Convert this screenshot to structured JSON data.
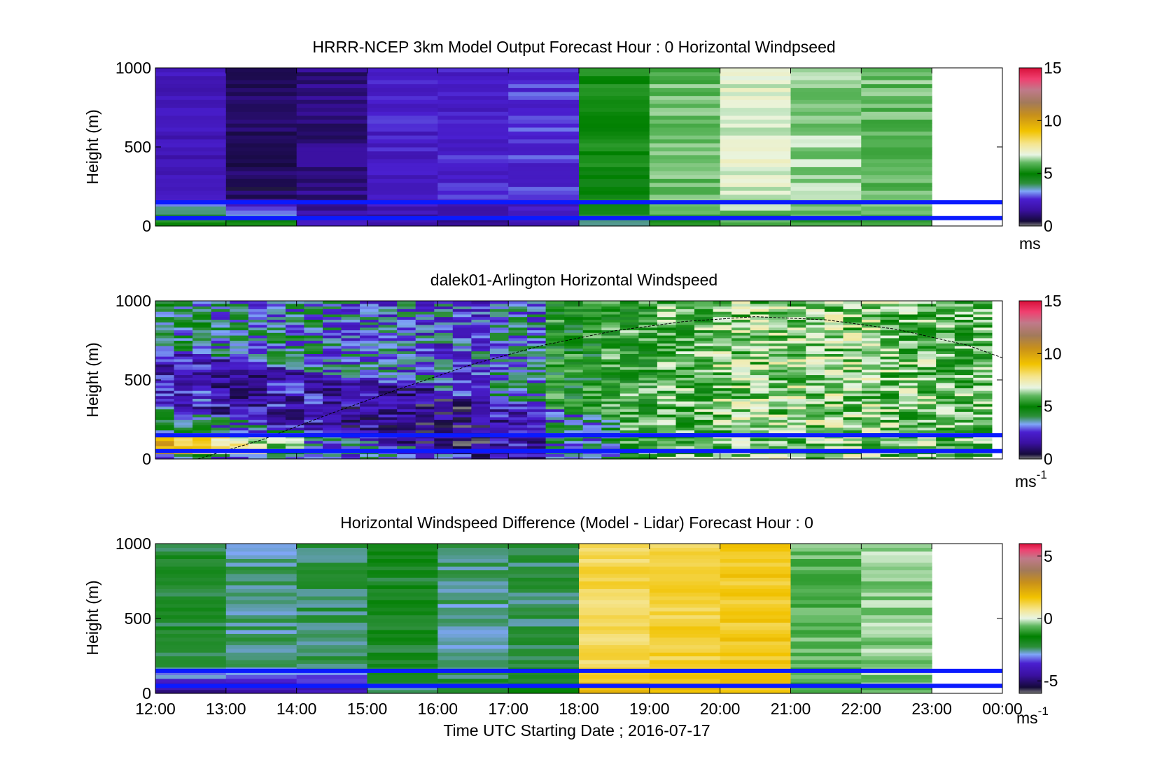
{
  "figure": {
    "xlabel": "Time UTC  Starting Date ; 2016-07-17"
  },
  "colors": {
    "band_line": "#0a1aff",
    "axes": "#000000",
    "nodata": "#ffffff",
    "gray_flag": "#858585"
  },
  "chart_data": [
    {
      "type": "heatmap",
      "title": "HRRR-NCEP 3km Model Output   Forecast Hour : 0 Horizontal Windpseed",
      "ylabel": "Height (m)",
      "x_ticklabels": [
        "12:00",
        "13:00",
        "14:00",
        "15:00",
        "16:00",
        "17:00",
        "18:00",
        "19:00",
        "20:00",
        "21:00",
        "22:00",
        "23:00",
        "00:00"
      ],
      "y_ticklabels": [
        "0",
        "500",
        "1000"
      ],
      "ylim": [
        0,
        1000
      ],
      "x_range_hours": [
        12,
        24
      ],
      "colorbar": {
        "ticks": [
          "0",
          "5",
          "10",
          "15"
        ],
        "tick_values": [
          0,
          5,
          10,
          15
        ],
        "clim": [
          0,
          15
        ],
        "unit_label": "ms"
      },
      "band_lines_m": [
        50,
        150
      ],
      "data_last_hour": 23,
      "columns": [
        {
          "hour_start": 12,
          "mean_speed": 2.0,
          "low_speed": 5.5
        },
        {
          "hour_start": 13,
          "mean_speed": 0.8,
          "low_speed": 5.0
        },
        {
          "hour_start": 14,
          "mean_speed": 1.2,
          "low_speed": 2.0
        },
        {
          "hour_start": 15,
          "mean_speed": 2.3,
          "low_speed": 1.5
        },
        {
          "hour_start": 16,
          "mean_speed": 2.4,
          "low_speed": 1.2
        },
        {
          "hour_start": 17,
          "mean_speed": 2.6,
          "low_speed": 1.5
        },
        {
          "hour_start": 18,
          "mean_speed": 5.0,
          "low_speed": 4.0
        },
        {
          "hour_start": 19,
          "mean_speed": 6.0,
          "low_speed": 5.5
        },
        {
          "hour_start": 20,
          "mean_speed": 6.8,
          "low_speed": 5.5
        },
        {
          "hour_start": 21,
          "mean_speed": 6.3,
          "low_speed": 5.5
        },
        {
          "hour_start": 22,
          "mean_speed": 6.0,
          "low_speed": 5.5
        }
      ]
    },
    {
      "type": "heatmap",
      "title": "dalek01-Arlington  Horizontal Windspeed",
      "ylabel": "Height (m)",
      "x_ticklabels": [
        "12:00",
        "13:00",
        "14:00",
        "15:00",
        "16:00",
        "17:00",
        "18:00",
        "19:00",
        "20:00",
        "21:00",
        "22:00",
        "23:00",
        "00:00"
      ],
      "y_ticklabels": [
        "0",
        "500",
        "1000"
      ],
      "ylim": [
        0,
        1000
      ],
      "x_range_hours": [
        12,
        24
      ],
      "colorbar": {
        "ticks": [
          "0",
          "5",
          "10",
          "15"
        ],
        "tick_values": [
          0,
          5,
          10,
          15
        ],
        "clim": [
          0,
          15
        ],
        "unit_label": "ms",
        "unit_exponent": "-1"
      },
      "band_lines_m": [
        50,
        150
      ],
      "boundary_layer_curve": {
        "hours": [
          12.6,
          13.5,
          14.5,
          15.5,
          16.5,
          17.5,
          18.5,
          19.5,
          20.5,
          21.5,
          22.5,
          23.5,
          24.0
        ],
        "heights_m": [
          0,
          120,
          290,
          450,
          600,
          720,
          810,
          870,
          900,
          880,
          820,
          720,
          640
        ]
      },
      "columns_mean_speed": [
        3.8,
        3.4,
        3.6,
        3.2,
        3.0,
        2.8,
        3.4,
        5.0,
        5.4,
        5.8,
        6.2,
        6.3,
        6.3,
        6.0,
        5.8
      ],
      "low_level_jet_hours": [
        12.0,
        14.0
      ],
      "low_level_jet_speed": 9.5
    },
    {
      "type": "heatmap",
      "title": "Horizontal Windspeed Difference (Model - Lidar) Forecast Hour : 0",
      "ylabel": "Height (m)",
      "x_ticklabels": [
        "12:00",
        "13:00",
        "14:00",
        "15:00",
        "16:00",
        "17:00",
        "18:00",
        "19:00",
        "20:00",
        "21:00",
        "22:00",
        "23:00",
        "00:00"
      ],
      "y_ticklabels": [
        "0",
        "500",
        "1000"
      ],
      "ylim": [
        0,
        1000
      ],
      "x_range_hours": [
        12,
        24
      ],
      "colorbar": {
        "ticks": [
          "-5",
          "0",
          "5"
        ],
        "tick_values": [
          -5,
          0,
          5
        ],
        "clim": [
          -6,
          6
        ],
        "unit_label": "ms",
        "unit_exponent": "-1"
      },
      "band_lines_m": [
        50,
        150
      ],
      "data_last_hour": 23,
      "columns": [
        {
          "hour_start": 12,
          "mean_diff": -2.6,
          "low_diff": -4.8
        },
        {
          "hour_start": 13,
          "mean_diff": -3.0,
          "low_diff": -4.5
        },
        {
          "hour_start": 14,
          "mean_diff": -2.8,
          "low_diff": -4.5
        },
        {
          "hour_start": 15,
          "mean_diff": -2.5,
          "low_diff": -3.0
        },
        {
          "hour_start": 16,
          "mean_diff": -3.0,
          "low_diff": -2.5
        },
        {
          "hour_start": 17,
          "mean_diff": -2.8,
          "low_diff": -2.0
        },
        {
          "hour_start": 18,
          "mean_diff": 0.6,
          "low_diff": 1.5
        },
        {
          "hour_start": 19,
          "mean_diff": 0.8,
          "low_diff": 1.2
        },
        {
          "hour_start": 20,
          "mean_diff": 1.0,
          "low_diff": 1.0
        },
        {
          "hour_start": 21,
          "mean_diff": -1.3,
          "low_diff": -1.5
        },
        {
          "hour_start": 22,
          "mean_diff": -1.0,
          "low_diff": -1.2
        }
      ]
    }
  ]
}
